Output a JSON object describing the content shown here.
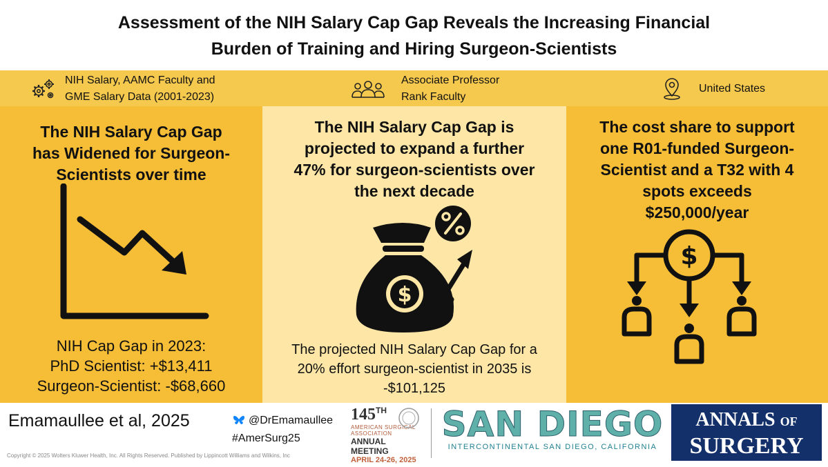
{
  "title": {
    "line1": "Assessment of the NIH Salary Cap Gap Reveals the Increasing Financial",
    "line2": "Burden of Training and Hiring Surgeon-Scientists"
  },
  "header": {
    "data_source": [
      "NIH Salary, AAMC Faculty and",
      "GME Salary Data (2001-2023)"
    ],
    "population": [
      "Associate Professor",
      "Rank Faculty"
    ],
    "location": "United States",
    "icons": [
      "gears-icon",
      "people-group-icon",
      "location-pin-icon"
    ]
  },
  "col1": {
    "heading": [
      "The NIH Salary Cap Gap",
      "has Widened for Surgeon-",
      "Scientists over time"
    ],
    "stats": [
      "NIH Cap Gap in 2023:",
      "PhD Scientist: +$13,411",
      "Surgeon-Scientist: -$68,660"
    ]
  },
  "col2": {
    "heading": [
      "The NIH Salary Cap Gap is",
      "projected to expand a further",
      "47% for surgeon-scientists over",
      "the next decade"
    ],
    "stats": [
      "The projected NIH Salary Cap Gap for a",
      "20% effort surgeon-scientist in 2035 is",
      "-$101,125"
    ]
  },
  "col3": {
    "heading": [
      "The cost share to support",
      "one R01-funded Surgeon-",
      "Scientist and a T32 with 4",
      "spots exceeds",
      "$250,000/year"
    ]
  },
  "footer": {
    "citation": "Emamaullee et al, 2025",
    "handle": "@DrEmamaullee",
    "hashtag": "#AmerSurg25",
    "copyright": "Copyright © 2025 Wolters Kluwer Health, Inc. All Rights Reserved. Published by Lippincott Williams and Wilkins, Inc",
    "meeting": {
      "number": "145",
      "suffix": "TH",
      "line1": "AMERICAN SURGICAL",
      "line2": "ASSOCIATION",
      "line3": "ANNUAL MEETING",
      "dates": "APRIL 24-26, 2025"
    },
    "venue": {
      "logo": "SAN DIEGO",
      "sub": "INTERCONTINENTAL SAN DIEGO, CALIFORNIA"
    },
    "journal": {
      "line1a": "ANNALS",
      "line1b": "OF",
      "line2": "SURGERY"
    }
  },
  "colors": {
    "band": "#f5c94e",
    "side_columns": "#f6bd36",
    "center_column": "#fde6a6",
    "annals_blue": "#14306a",
    "bluesky_blue": "#1185fe"
  }
}
